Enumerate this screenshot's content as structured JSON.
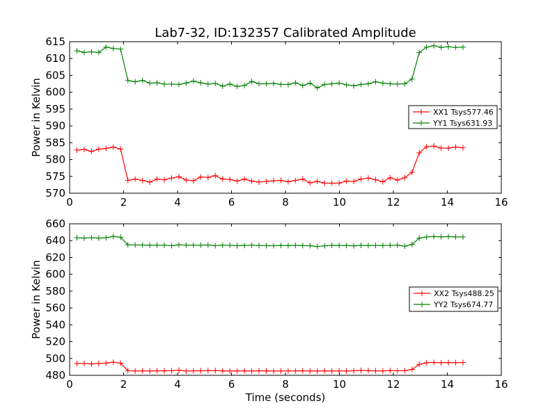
{
  "title": "Lab7-32, ID:132357 Calibrated Amplitude",
  "colors": {
    "xx": "#ff0000",
    "yy": "#008000"
  },
  "chart_data": [
    {
      "type": "line",
      "xlabel": "",
      "ylabel": "Power in Kelvin",
      "xlim": [
        0,
        16
      ],
      "ylim": [
        570,
        615
      ],
      "xticks": [
        0,
        2,
        4,
        6,
        8,
        10,
        12,
        14,
        16
      ],
      "yticks": [
        570,
        575,
        580,
        585,
        590,
        595,
        600,
        605,
        610,
        615
      ],
      "grid": false,
      "legend": "center-right",
      "x": [
        0.27,
        0.54,
        0.81,
        1.08,
        1.35,
        1.62,
        1.89,
        2.16,
        2.43,
        2.7,
        2.97,
        3.24,
        3.51,
        3.78,
        4.05,
        4.32,
        4.59,
        4.86,
        5.13,
        5.4,
        5.67,
        5.94,
        6.21,
        6.48,
        6.75,
        7.02,
        7.29,
        7.56,
        7.83,
        8.1,
        8.37,
        8.64,
        8.91,
        9.18,
        9.45,
        9.72,
        9.99,
        10.26,
        10.53,
        10.8,
        11.07,
        11.34,
        11.61,
        11.88,
        12.15,
        12.42,
        12.69,
        12.96,
        13.23,
        13.5,
        13.77,
        14.04,
        14.31,
        14.58
      ],
      "series": [
        {
          "name": "XX1 Tsys577.46",
          "color": "#ff0000",
          "values": [
            582.8,
            583.0,
            582.4,
            583.1,
            583.3,
            583.7,
            583.1,
            573.8,
            574.2,
            573.8,
            573.3,
            574.2,
            574.0,
            574.5,
            574.9,
            573.9,
            573.7,
            574.8,
            574.7,
            575.2,
            574.2,
            574.1,
            573.6,
            574.2,
            573.6,
            573.3,
            573.5,
            573.7,
            573.8,
            573.4,
            573.8,
            574.2,
            573.1,
            573.5,
            573.0,
            573.0,
            573.0,
            573.6,
            573.5,
            574.2,
            574.5,
            574.0,
            573.4,
            574.6,
            573.9,
            574.6,
            576.2,
            582.0,
            583.8,
            584.0,
            583.4,
            583.4,
            583.7,
            583.5
          ]
        },
        {
          "name": "YY1 Tsys631.93",
          "color": "#008000",
          "values": [
            612.3,
            611.8,
            612.0,
            611.8,
            613.4,
            613.0,
            612.8,
            603.5,
            603.1,
            603.5,
            602.7,
            602.8,
            602.4,
            602.4,
            602.3,
            602.7,
            603.3,
            602.8,
            602.4,
            602.6,
            601.8,
            602.4,
            601.7,
            602.0,
            603.2,
            602.5,
            602.5,
            602.6,
            602.3,
            602.3,
            602.8,
            602.0,
            602.7,
            601.3,
            602.3,
            602.5,
            602.7,
            602.2,
            601.9,
            602.3,
            602.5,
            603.1,
            602.7,
            602.5,
            602.4,
            602.5,
            603.9,
            611.8,
            613.4,
            613.8,
            613.3,
            613.5,
            613.3,
            613.4
          ]
        }
      ]
    },
    {
      "type": "line",
      "xlabel": "Time (seconds)",
      "ylabel": "Power in Kelvin",
      "xlim": [
        0,
        16
      ],
      "ylim": [
        480,
        660
      ],
      "xticks": [
        0,
        2,
        4,
        6,
        8,
        10,
        12,
        14,
        16
      ],
      "yticks": [
        480,
        500,
        520,
        540,
        560,
        580,
        600,
        620,
        640,
        660
      ],
      "grid": false,
      "legend": "center-right",
      "x": [
        0.27,
        0.54,
        0.81,
        1.08,
        1.35,
        1.62,
        1.89,
        2.16,
        2.43,
        2.7,
        2.97,
        3.24,
        3.51,
        3.78,
        4.05,
        4.32,
        4.59,
        4.86,
        5.13,
        5.4,
        5.67,
        5.94,
        6.21,
        6.48,
        6.75,
        7.02,
        7.29,
        7.56,
        7.83,
        8.1,
        8.37,
        8.64,
        8.91,
        9.18,
        9.45,
        9.72,
        9.99,
        10.26,
        10.53,
        10.8,
        11.07,
        11.34,
        11.61,
        11.88,
        12.15,
        12.42,
        12.69,
        12.96,
        13.23,
        13.5,
        13.77,
        14.04,
        14.31,
        14.58
      ],
      "series": [
        {
          "name": "XX2 Tsys488.25",
          "color": "#ff0000",
          "values": [
            494,
            494,
            493.5,
            494,
            494.5,
            495.5,
            494.5,
            485.5,
            485.2,
            485.3,
            485.2,
            485.4,
            485.3,
            485.5,
            486,
            485,
            485.2,
            485.4,
            485.5,
            485.6,
            485.3,
            485,
            485.2,
            485.3,
            485,
            485.4,
            485.2,
            485,
            485.1,
            485.3,
            485.2,
            485.4,
            485.2,
            485,
            485.3,
            485.1,
            485.2,
            485,
            485.4,
            485.8,
            485.5,
            485.3,
            485.2,
            485.6,
            485.4,
            485.5,
            487,
            493,
            495,
            495.3,
            495,
            495.2,
            495,
            495.2
          ]
        },
        {
          "name": "YY2 Tsys674.77",
          "color": "#008000",
          "values": [
            643.5,
            643,
            643.5,
            643,
            643.5,
            645,
            644,
            635,
            634.8,
            634.8,
            634.5,
            634.6,
            634.6,
            634,
            635,
            634.6,
            634.6,
            634.6,
            634.8,
            634,
            634.6,
            634.4,
            634,
            634.3,
            634.6,
            634.2,
            634,
            634,
            634.2,
            634.1,
            634.4,
            634.1,
            634,
            633,
            633.8,
            634.4,
            634.3,
            634.2,
            633.8,
            634.4,
            634.2,
            634.3,
            634.2,
            634.4,
            634.6,
            633.4,
            635.4,
            643,
            644.3,
            644.8,
            644.4,
            644.8,
            644.4,
            644.3
          ]
        }
      ]
    }
  ]
}
